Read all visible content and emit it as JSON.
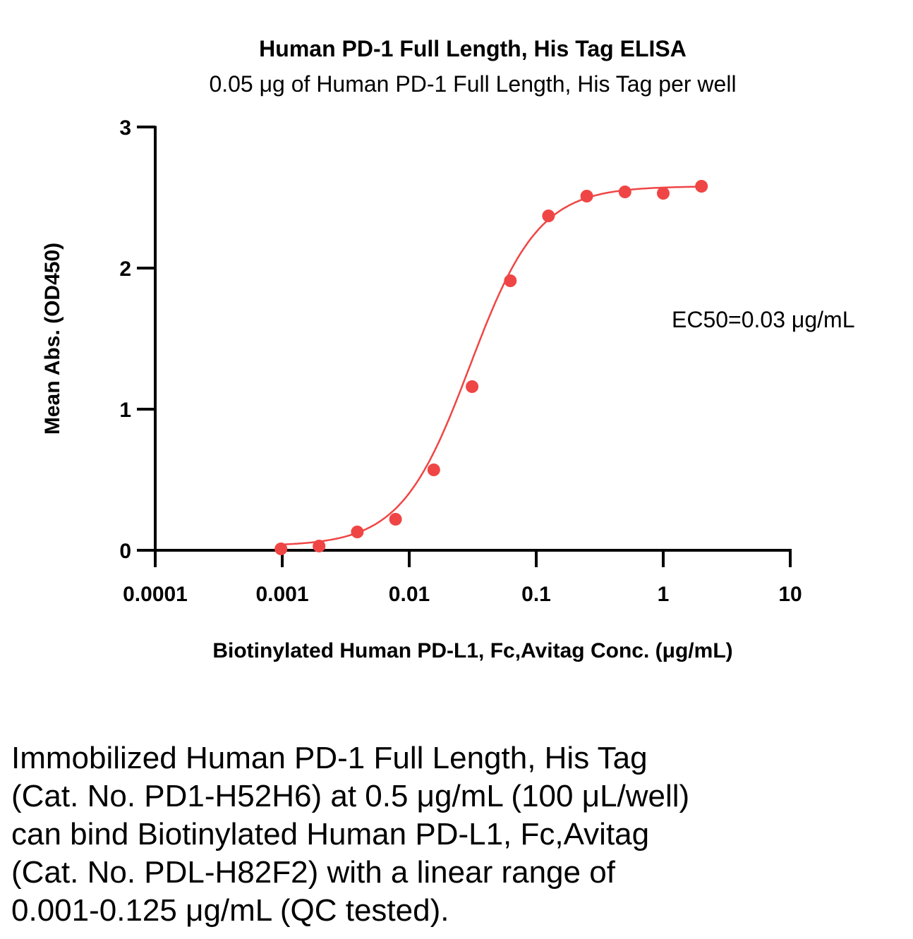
{
  "chart_data": {
    "type": "scatter",
    "title": "Human PD-1 Full Length, His Tag ELISA",
    "subtitle": "0.05 μg of Human PD-1 Full Length, His Tag per well",
    "xlabel": "Biotinylated Human PD-L1, Fc,Avitag Conc. (μg/mL)",
    "ylabel": "Mean Abs. (OD450)",
    "xscale": "log",
    "xlim": [
      0.0001,
      10
    ],
    "ylim": [
      0,
      3
    ],
    "xticks": [
      "0.0001",
      "0.001",
      "0.01",
      "0.1",
      "1",
      "10"
    ],
    "yticks": [
      "0",
      "1",
      "2",
      "3"
    ],
    "grid": false,
    "annotation": "EC50=0.03 μg/mL",
    "color": "#f04545",
    "series": [
      {
        "x": [
          0.000977,
          0.00195,
          0.0039,
          0.0078,
          0.0156,
          0.03125,
          0.0625,
          0.125,
          0.25,
          0.5,
          1,
          2
        ],
        "y": [
          0.01,
          0.03,
          0.13,
          0.22,
          0.57,
          1.16,
          1.91,
          2.37,
          2.51,
          2.54,
          2.53,
          2.58
        ]
      }
    ],
    "fit": {
      "bottom": 0.03,
      "top": 2.58,
      "ec50": 0.03,
      "hill": 1.6
    }
  },
  "caption": [
    "Immobilized Human PD-1 Full Length, His Tag",
    "(Cat. No. PD1-H52H6) at 0.5 μg/mL (100 μL/well)",
    "can bind Biotinylated Human PD-L1, Fc,Avitag",
    "(Cat. No. PDL-H82F2) with a linear range of",
    "0.001-0.125 μg/mL (QC tested)."
  ]
}
